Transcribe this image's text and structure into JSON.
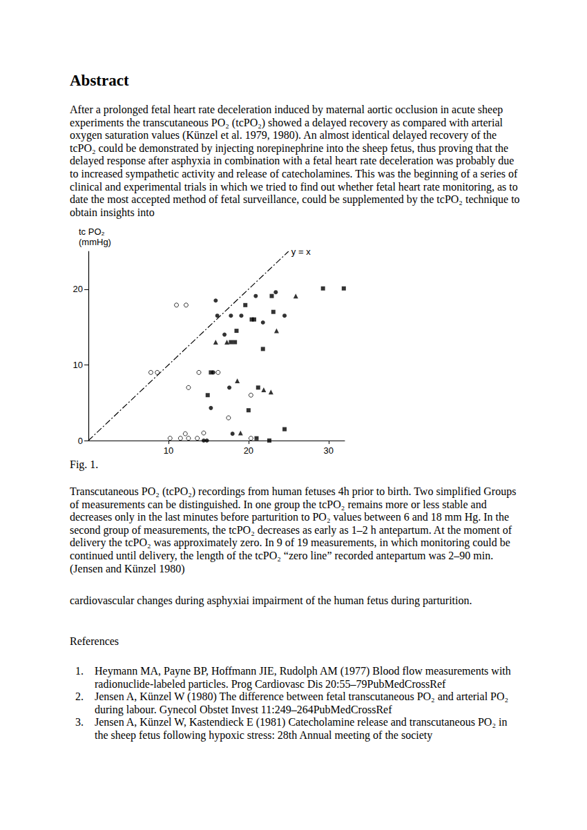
{
  "document": {
    "heading": "Abstract",
    "text_before_figure": "After a prolonged fetal heart rate deceleration induced by maternal aortic occlusion in acute sheep experiments the transcutaneous PO₂ (tcPO₂) showed a delayed recovery as compared with arterial oxygen saturation values (Künzel et al. 1979, 1980). An almost identical delayed recovery of the tcPO₂ could be demonstrated by injecting norepinephrine into the sheep fetus, thus proving that the delayed response after asphyxia in combination with a fetal heart rate deceleration was probably due to increased sympathetic activity and release of catecholamines. This was the beginning of a series of clinical and experimental trials in which we tried to find out whether fetal heart rate monitoring, as to date the most accepted method of fetal surveillance, could be supplemented by the tcPO₂ technique to obtain insights into",
    "figure_label": "Fig. 1.",
    "figure_caption": "Transcutaneous PO₂ (tcPO₂) recordings from human fetuses 4h prior to birth. Two simplified Groups of measurements can be distinguished. In one group the tcPO₂ remains more or less stable and decreases only in the last minutes before parturition to PO₂ values between 6 and 18 mm Hg. In the second group of measurements, the tcPO₂ decreases as early as 1–2 h antepartum. At the moment of delivery the tcPO₂ was approximately zero. In 9 of 19 measurements, in which monitoring could be continued until delivery, the length of the tcPO₂ “zero line” recorded antepartum was 2–90 min. (Jensen and Künzel 1980)",
    "text_after_figure": "cardiovascular changes during asphyxiai impairment of the human fetus during parturition.",
    "references_heading": "References",
    "references": [
      {
        "number": "1.",
        "text": "Heymann MA, Payne BP, Hoffmann JIE, Rudolph AM (1977) Blood flow measurements with radionuclide-labeled particles. Prog Cardiovasc Dis 20:55–79PubMedCrossRef"
      },
      {
        "number": "2.",
        "text": "Jensen A, Künzel W (1980) The difference between fetal transcutaneous PO₂ and arterial PO₂ during labour. Gynecol Obstet Invest 11:249–264PubMedCrossRef"
      },
      {
        "number": "3.",
        "text": "Jensen A, Künzel W, Kastendieck E (1981) Catecholamine release and transcutaneous PO₂ in the sheep fetus following hypoxic stress: 28th Annual meeting of the society"
      }
    ]
  },
  "chart_data": {
    "type": "scatter",
    "ylabel": "tc PO₂\n(mmHg)",
    "xlim": [
      0,
      32
    ],
    "ylim": [
      0,
      25
    ],
    "xticks": [
      10,
      20,
      30
    ],
    "yticks": [
      0,
      10,
      20
    ],
    "grid": false,
    "series": [
      {
        "type": "line",
        "line_style": "dashdot",
        "color": "#000000",
        "annotation": "y = x",
        "x": [
          0,
          25
        ],
        "values": [
          0,
          25
        ]
      },
      {
        "type": "scatter",
        "marker": "open_circle",
        "color": "#000000",
        "x": [
          11.0,
          12.2,
          7.8,
          8.6,
          13.8,
          12.5,
          16.2,
          20.3,
          17.5,
          10.2,
          11.5,
          12.1,
          12.5,
          13.6,
          14.4,
          20.3
        ],
        "values": [
          17.9,
          17.9,
          9.0,
          9.0,
          9.0,
          7.0,
          9.0,
          6.0,
          3.0,
          0.3,
          0.3,
          0.9,
          0.3,
          0.3,
          1.0,
          0.3
        ]
      },
      {
        "type": "scatter",
        "marker": "circle",
        "color": "#000000",
        "x": [
          15.9,
          16.1,
          17.8,
          17.0,
          19.1,
          20.9,
          21.8,
          23.4,
          24.5,
          15.6,
          17.6,
          15.3,
          18.0,
          14.4,
          14.8
        ],
        "values": [
          18.5,
          16.5,
          16.5,
          14.0,
          16.5,
          19.1,
          15.6,
          19.6,
          16.5,
          9.0,
          7.0,
          4.3,
          0.9,
          0,
          0
        ]
      },
      {
        "type": "scatter",
        "marker": "square",
        "color": "#000000",
        "x": [
          29.3,
          31.9,
          19.6,
          22.9,
          23.1,
          20.4,
          20.7,
          18.5,
          17.8,
          18.3,
          21.8,
          15.3,
          14.9,
          21.2,
          20.0,
          24.5,
          21.0,
          22.6
        ],
        "values": [
          20.1,
          20.1,
          17.9,
          19.1,
          17.0,
          16.0,
          16.0,
          14.5,
          13.0,
          13.0,
          12.1,
          9.0,
          6.0,
          7.0,
          4.0,
          1.5,
          0.3,
          0
        ]
      },
      {
        "type": "scatter",
        "marker": "triangle",
        "color": "#000000",
        "x": [
          25.9,
          23.5,
          15.9,
          17.3,
          18.6,
          21.9,
          22.8,
          19.0
        ],
        "values": [
          19.1,
          14.5,
          13.0,
          13.0,
          7.9,
          6.7,
          6.4,
          1.0
        ]
      }
    ]
  }
}
